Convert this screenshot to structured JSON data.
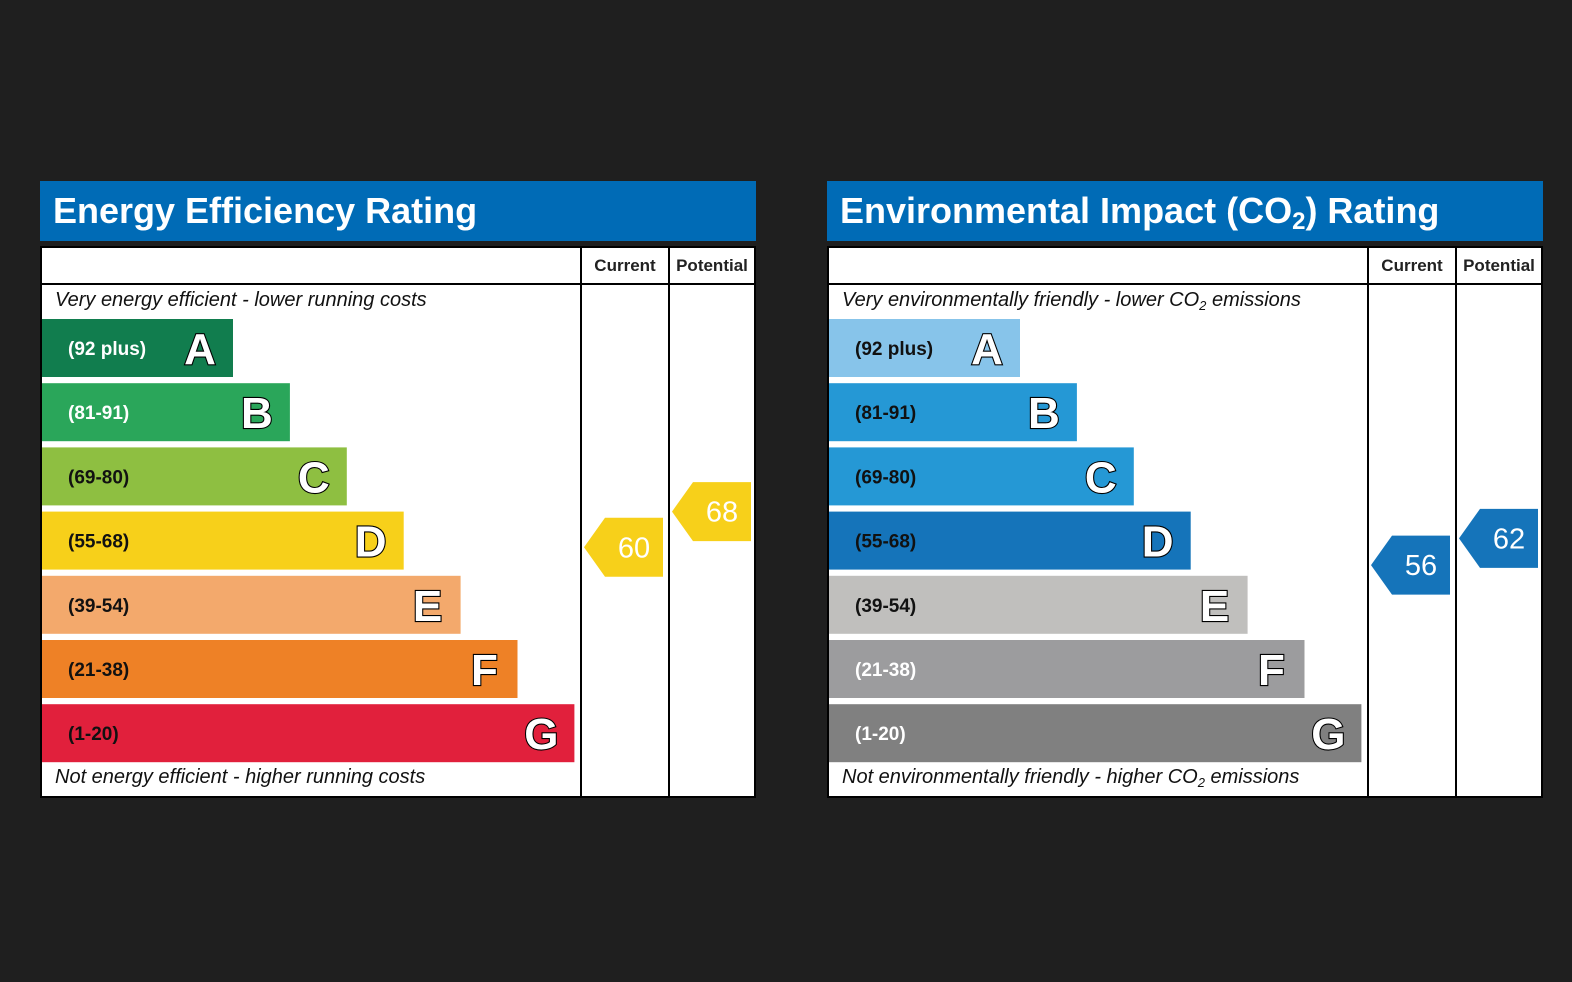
{
  "chart_data": [
    {
      "type": "bar",
      "title": "Energy Efficiency Rating",
      "columns": {
        "current": "Current",
        "potential": "Potential"
      },
      "top_note": "Very energy efficient - lower running costs",
      "bottom_note": "Not energy efficient - higher running costs",
      "bands": [
        {
          "letter": "A",
          "range": "(92 plus)",
          "min": 92,
          "max": 100,
          "color": "#117d4e",
          "range_color": "#ffffff"
        },
        {
          "letter": "B",
          "range": "(81-91)",
          "min": 81,
          "max": 91,
          "color": "#2aa65a",
          "range_color": "#ffffff"
        },
        {
          "letter": "C",
          "range": "(69-80)",
          "min": 69,
          "max": 80,
          "color": "#8ebf41",
          "range_color": "#111111"
        },
        {
          "letter": "D",
          "range": "(55-68)",
          "min": 55,
          "max": 68,
          "color": "#f7d01a",
          "range_color": "#111111"
        },
        {
          "letter": "E",
          "range": "(39-54)",
          "min": 39,
          "max": 54,
          "color": "#f3a96c",
          "range_color": "#111111"
        },
        {
          "letter": "F",
          "range": "(21-38)",
          "min": 21,
          "max": 38,
          "color": "#ee8126",
          "range_color": "#111111"
        },
        {
          "letter": "G",
          "range": "(1-20)",
          "min": 1,
          "max": 20,
          "color": "#e1203c",
          "range_color": "#111111"
        }
      ],
      "current": {
        "value": 60,
        "color": "#f7d01a"
      },
      "potential": {
        "value": 68,
        "color": "#f7d01a"
      }
    },
    {
      "type": "bar",
      "title_parts": [
        "Environmental Impact (CO",
        "2",
        ") Rating"
      ],
      "columns": {
        "current": "Current",
        "potential": "Potential"
      },
      "top_note_parts": [
        "Very environmentally friendly - lower CO",
        "2",
        " emissions"
      ],
      "bottom_note_parts": [
        "Not environmentally friendly - higher CO",
        "2",
        " emissions"
      ],
      "bands": [
        {
          "letter": "A",
          "range": "(92 plus)",
          "min": 92,
          "max": 100,
          "color": "#87c4ea",
          "range_color": "#111111"
        },
        {
          "letter": "B",
          "range": "(81-91)",
          "min": 81,
          "max": 91,
          "color": "#2598d5",
          "range_color": "#111111"
        },
        {
          "letter": "C",
          "range": "(69-80)",
          "min": 69,
          "max": 80,
          "color": "#2598d5",
          "range_color": "#111111"
        },
        {
          "letter": "D",
          "range": "(55-68)",
          "min": 55,
          "max": 68,
          "color": "#1574ba",
          "range_color": "#111111"
        },
        {
          "letter": "E",
          "range": "(39-54)",
          "min": 39,
          "max": 54,
          "color": "#c0bfbd",
          "range_color": "#111111"
        },
        {
          "letter": "F",
          "range": "(21-38)",
          "min": 21,
          "max": 38,
          "color": "#9c9c9e",
          "range_color": "#ffffff"
        },
        {
          "letter": "G",
          "range": "(1-20)",
          "min": 1,
          "max": 20,
          "color": "#808080",
          "range_color": "#ffffff"
        }
      ],
      "current": {
        "value": 56,
        "color": "#1574ba"
      },
      "potential": {
        "value": 62,
        "color": "#1574ba"
      }
    }
  ]
}
